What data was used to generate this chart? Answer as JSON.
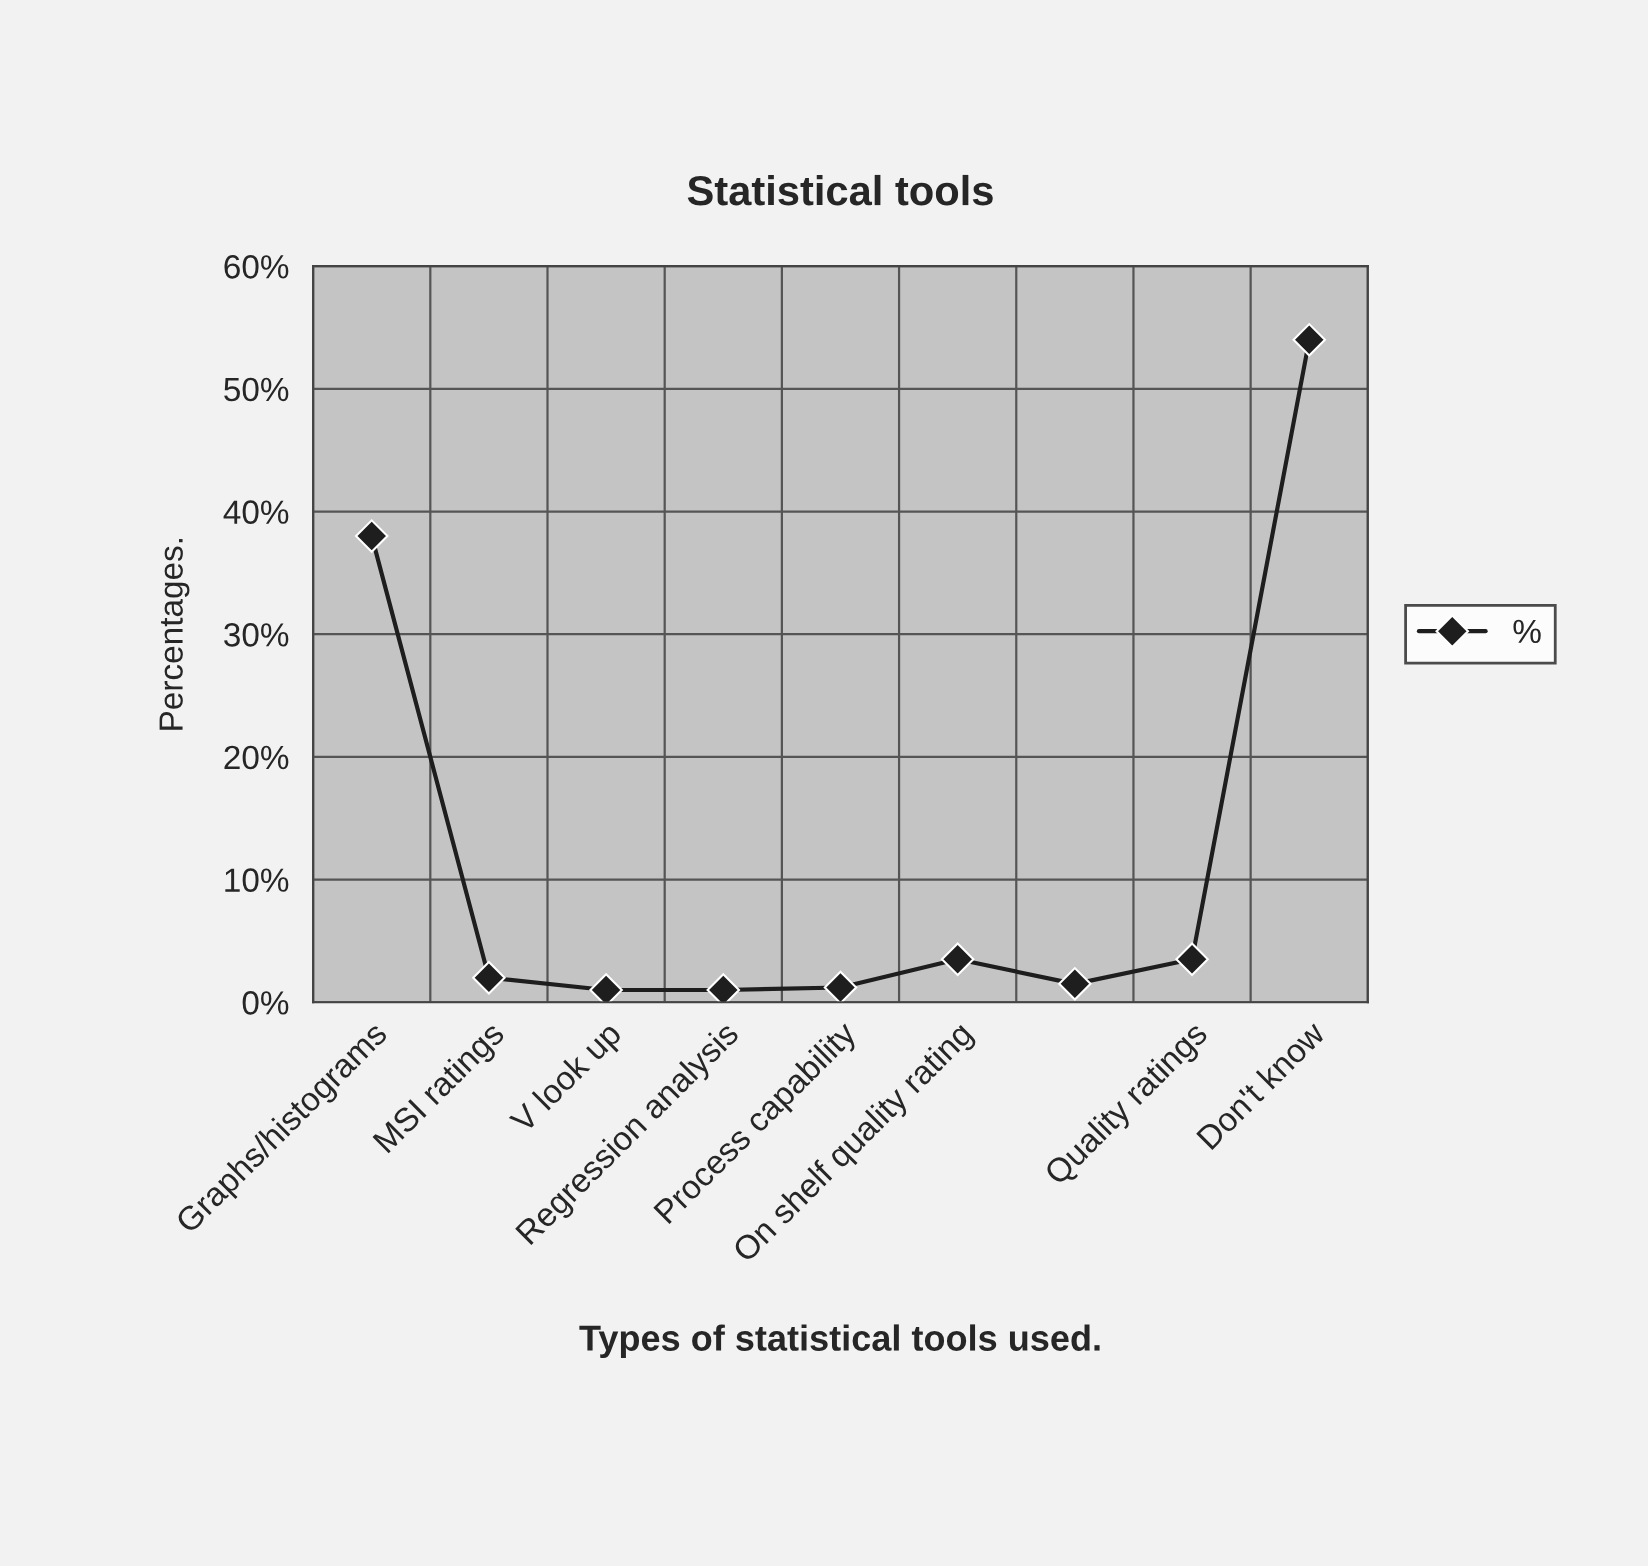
{
  "chart_data": {
    "type": "line",
    "title": "Statistical tools",
    "xlabel": "Types of statistical tools used.",
    "ylabel": "Percentages.",
    "categories": [
      "Graphs/histograms",
      "MSI ratings",
      "V look up",
      "Regression analysis",
      "Process capability",
      "On shelf quality rating",
      null,
      "Quality ratings",
      "Don't know"
    ],
    "series": [
      {
        "name": "%",
        "color": "#1e1e1e",
        "values": [
          38,
          2,
          1,
          1,
          1.2,
          3.5,
          1.5,
          3.5,
          54
        ]
      }
    ],
    "ylim": [
      0,
      60
    ],
    "yticks": [
      {
        "value": 0,
        "label": "0%"
      },
      {
        "value": 10,
        "label": "10%"
      },
      {
        "value": 20,
        "label": "20%"
      },
      {
        "value": 30,
        "label": "30%"
      },
      {
        "value": 40,
        "label": "40%"
      },
      {
        "value": 50,
        "label": "50%"
      },
      {
        "value": 60,
        "label": "60%"
      }
    ],
    "grid": true,
    "legend": "right",
    "marker": "diamond",
    "line_style": "solid"
  }
}
